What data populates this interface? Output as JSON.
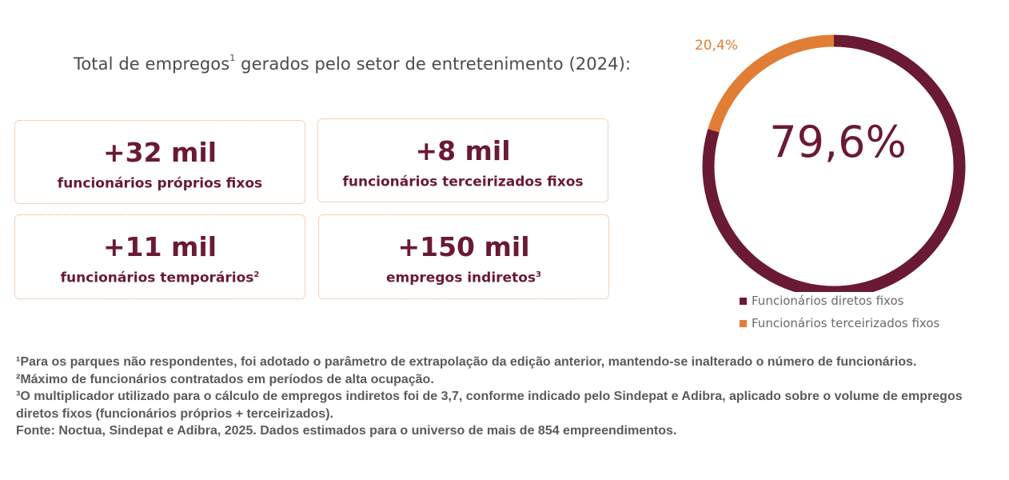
{
  "title": {
    "text": "Total de empregos",
    "sup": "1",
    "rest": " gerados pelo setor de entretenimento (2024):"
  },
  "stats": [
    {
      "value": "+32 mil",
      "label": "funcionários próprios fixos",
      "sup": ""
    },
    {
      "value": "+8 mil",
      "label": "funcionários terceirizados fixos",
      "sup": ""
    },
    {
      "value": "+11 mil",
      "label": "funcionários temporários",
      "sup": "2"
    },
    {
      "value": "+150 mil",
      "label": "empregos indiretos",
      "sup": "3"
    }
  ],
  "chart_data": {
    "type": "pie",
    "donut": true,
    "title": "",
    "center_label": "79,6%",
    "slices": [
      {
        "name": "Funcionários diretos fixos",
        "value": 79.6,
        "color": "#6a1a33",
        "label": ""
      },
      {
        "name": "Funcionários terceirizados fixos",
        "value": 20.4,
        "color": "#e07e36",
        "label": "20,4%"
      }
    ],
    "legend_position": "bottom"
  },
  "notes": [
    "¹Para os parques não respondentes, foi adotado o parâmetro de extrapolação da edição anterior, mantendo-se inalterado o número de funcionários.",
    "²Máximo de funcionários contratados em períodos de alta ocupação.",
    "³O multiplicador utilizado para o cálculo de empregos indiretos foi de 3,7, conforme indicado pelo Sindepat e Adibra, aplicado sobre o volume de empregos diretos fixos (funcionários próprios + terceirizados).",
    "Fonte: Noctua, Sindepat e Adibra, 2025. Dados estimados para o universo de mais de 854 empreendimentos."
  ]
}
